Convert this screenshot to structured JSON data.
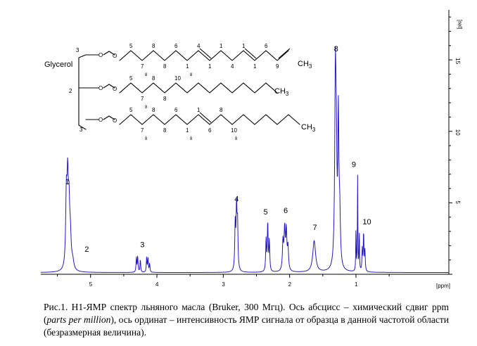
{
  "chart_data": {
    "type": "line",
    "title": "",
    "xlabel": "[ppm]",
    "ylabel": "[rel]",
    "xlim": [
      5.75,
      -0.4
    ],
    "ylim": [
      0,
      18.5
    ],
    "x_ticks": [
      5,
      4,
      3,
      2,
      1
    ],
    "y_ticks": [
      5,
      10,
      15
    ],
    "grid": false,
    "series": [
      {
        "peaks": [
          {
            "label": "1",
            "ppm": 5.35,
            "height": 5.9
          },
          {
            "label": "2",
            "ppm": 5.27,
            "height": 0.7
          },
          {
            "label": "3",
            "ppm": 4.22,
            "height": 1.2
          },
          {
            "label": "4",
            "ppm": 2.8,
            "height": 4.6
          },
          {
            "label": "5",
            "ppm": 2.32,
            "height": 3.6
          },
          {
            "label": "6",
            "ppm": 2.06,
            "height": 3.5
          },
          {
            "label": "7",
            "ppm": 1.62,
            "height": 2.5
          },
          {
            "label": "8",
            "ppm": 1.3,
            "height": 15.2
          },
          {
            "label": "9",
            "ppm": 0.98,
            "height": 7.0
          },
          {
            "label": "10",
            "ppm": 0.89,
            "height": 3.0
          }
        ]
      }
    ],
    "peak_labels": [
      "1",
      "2",
      "3",
      "4",
      "5",
      "6",
      "7",
      "8",
      "9",
      "10"
    ]
  },
  "molecule": {
    "glycerol_label": "Glycerol",
    "glycerol_positions": [
      "3",
      "2",
      "3"
    ],
    "methyl": "CH",
    "methyl_sub": "3",
    "chain1_big": [
      "5",
      "7",
      "8",
      "8",
      "6",
      "1",
      "4",
      "1",
      "1",
      "4",
      "1",
      "1",
      "6",
      "9"
    ],
    "chain1_small": [
      "8",
      "8"
    ],
    "chain2_big": [
      "5",
      "7",
      "8",
      "8",
      "10"
    ],
    "chain2_small": [
      "8",
      "8",
      "8",
      "8",
      "8",
      "8",
      "8",
      "8",
      "8",
      "8",
      "8",
      "8"
    ],
    "chain3_big": [
      "5",
      "7",
      "8",
      "8",
      "6",
      "1",
      "1",
      "6",
      "8",
      "10"
    ],
    "chain3_small": [
      "8",
      "8",
      "8",
      "8",
      "8",
      "8"
    ]
  },
  "caption": {
    "part1": "Рис.1. H1-ЯМР спектр льняного масла (Bruker, 300 Мгц). Ось абсцисс – химический сдвиг ppm (",
    "italic": "parts per million",
    "part2": "), ось ординат – интенсивность ЯМР сигнала от образца в данной частотой области (безразмерная величина)."
  }
}
